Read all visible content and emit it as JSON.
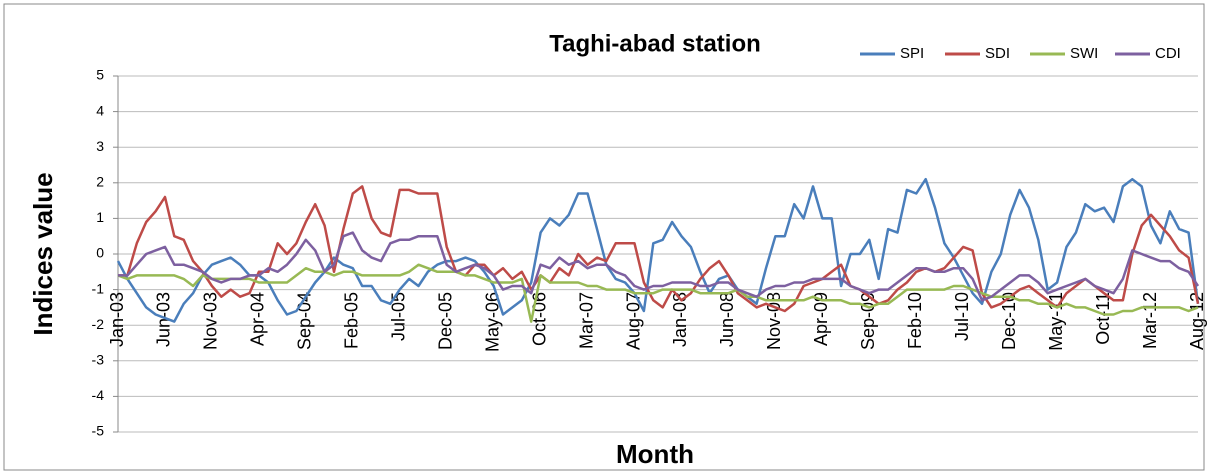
{
  "chart_data": {
    "type": "line",
    "title": "Taghi-abad station",
    "x_label": "Month",
    "y_label": "Indices value",
    "categories": [
      "Jan-03",
      null,
      null,
      null,
      null,
      "Jun-03",
      null,
      null,
      null,
      null,
      "Nov-03",
      null,
      null,
      null,
      null,
      "Apr-04",
      null,
      null,
      null,
      null,
      "Sep-04",
      null,
      null,
      null,
      null,
      "Feb-05",
      null,
      null,
      null,
      null,
      "Jul-05",
      null,
      null,
      null,
      null,
      "Dec-05",
      null,
      null,
      null,
      null,
      "May-06",
      null,
      null,
      null,
      null,
      "Oct-06",
      null,
      null,
      null,
      null,
      "Mar-07",
      null,
      null,
      null,
      null,
      "Aug-07",
      null,
      null,
      null,
      null,
      "Jan-08",
      null,
      null,
      null,
      null,
      "Jun-08",
      null,
      null,
      null,
      null,
      "Nov-08",
      null,
      null,
      null,
      null,
      "Apr-09",
      null,
      null,
      null,
      null,
      "Sep-09",
      null,
      null,
      null,
      null,
      "Feb-10",
      null,
      null,
      null,
      null,
      "Jul-10",
      null,
      null,
      null,
      null,
      "Dec-10",
      null,
      null,
      null,
      null,
      "May-11",
      null,
      null,
      null,
      null,
      "Oct-11",
      null,
      null,
      null,
      null,
      "Mar-12",
      null,
      null,
      null,
      null,
      "Aug-12"
    ],
    "series": [
      {
        "name": "SPI",
        "color": "#4a7ebb",
        "values": [
          -0.2,
          -0.7,
          -1.1,
          -1.5,
          -1.7,
          -1.8,
          -1.9,
          -1.4,
          -1.1,
          -0.6,
          -0.3,
          -0.2,
          -0.1,
          -0.3,
          -0.6,
          -0.6,
          -0.8,
          -1.3,
          -1.7,
          -1.6,
          -1.2,
          -0.8,
          -0.5,
          -0.1,
          -0.3,
          -0.4,
          -0.9,
          -0.9,
          -1.3,
          -1.4,
          -1.0,
          -0.7,
          -0.9,
          -0.5,
          -0.3,
          -0.2,
          -0.2,
          -0.1,
          -0.2,
          -0.5,
          -0.9,
          -1.7,
          -1.5,
          -1.3,
          -0.8,
          0.6,
          1.0,
          0.8,
          1.1,
          1.7,
          1.7,
          0.7,
          -0.3,
          -0.7,
          -0.8,
          -1.1,
          -1.6,
          0.3,
          0.4,
          0.9,
          0.5,
          0.2,
          -0.5,
          -1.1,
          -0.7,
          -0.6,
          -1.0,
          -1.2,
          -1.4,
          -0.4,
          0.5,
          0.5,
          1.4,
          1.0,
          1.9,
          1.0,
          1.0,
          -0.9,
          0.0,
          0.0,
          0.4,
          -0.7,
          0.7,
          0.6,
          1.8,
          1.7,
          2.1,
          1.3,
          0.3,
          -0.1,
          -0.6,
          -1.1,
          -1.4,
          -0.5,
          0.0,
          1.1,
          1.8,
          1.3,
          0.4,
          -1.0,
          -0.8,
          0.2,
          0.6,
          1.4,
          1.2,
          1.3,
          0.9,
          1.9,
          2.1,
          1.9,
          0.8,
          0.3,
          1.2,
          0.7,
          0.6,
          -1.4
        ]
      },
      {
        "name": "SDI",
        "color": "#be4b48",
        "values": [
          -0.6,
          -0.6,
          0.3,
          0.9,
          1.2,
          1.6,
          0.5,
          0.4,
          -0.2,
          -0.5,
          -0.9,
          -1.2,
          -1.0,
          -1.2,
          -1.1,
          -0.5,
          -0.5,
          0.3,
          0.0,
          0.3,
          0.9,
          1.4,
          0.8,
          -0.5,
          0.7,
          1.7,
          1.9,
          1.0,
          0.6,
          0.5,
          1.8,
          1.8,
          1.7,
          1.7,
          1.7,
          0.2,
          -0.5,
          -0.6,
          -0.3,
          -0.3,
          -0.6,
          -0.4,
          -0.7,
          -0.5,
          -1.0,
          -0.6,
          -0.8,
          -0.4,
          -0.6,
          0.0,
          -0.3,
          -0.1,
          -0.2,
          0.3,
          0.3,
          0.3,
          -0.8,
          -1.3,
          -1.5,
          -1.0,
          -1.3,
          -1.1,
          -0.7,
          -0.4,
          -0.2,
          -0.6,
          -1.1,
          -1.3,
          -1.5,
          -1.4,
          -1.5,
          -1.6,
          -1.4,
          -0.9,
          -0.8,
          -0.7,
          -0.5,
          -0.3,
          -0.9,
          -1.0,
          -1.2,
          -1.4,
          -1.3,
          -1.0,
          -0.8,
          -0.5,
          -0.4,
          -0.5,
          -0.4,
          -0.1,
          0.2,
          0.1,
          -1.1,
          -1.5,
          -1.4,
          -1.2,
          -1.0,
          -0.9,
          -1.1,
          -1.3,
          -1.5,
          -1.1,
          -0.9,
          -0.7,
          -0.9,
          -1.1,
          -1.3,
          -1.3,
          0.0,
          0.8,
          1.1,
          0.8,
          0.5,
          0.1,
          -0.1,
          -1.4
        ]
      },
      {
        "name": "SWI",
        "color": "#98b954",
        "values": [
          -0.6,
          -0.7,
          -0.6,
          -0.6,
          -0.6,
          -0.6,
          -0.6,
          -0.7,
          -0.9,
          -0.6,
          -0.7,
          -0.7,
          -0.7,
          -0.7,
          -0.7,
          -0.8,
          -0.8,
          -0.8,
          -0.8,
          -0.6,
          -0.4,
          -0.5,
          -0.5,
          -0.6,
          -0.5,
          -0.5,
          -0.6,
          -0.6,
          -0.6,
          -0.6,
          -0.6,
          -0.5,
          -0.3,
          -0.4,
          -0.5,
          -0.5,
          -0.5,
          -0.6,
          -0.6,
          -0.7,
          -0.8,
          -0.8,
          -0.8,
          -0.7,
          -1.9,
          -0.6,
          -0.8,
          -0.8,
          -0.8,
          -0.8,
          -0.9,
          -0.9,
          -1.0,
          -1.0,
          -1.0,
          -1.1,
          -1.1,
          -1.1,
          -1.0,
          -1.0,
          -1.0,
          -1.0,
          -1.1,
          -1.1,
          -1.1,
          -1.1,
          -1.0,
          -1.2,
          -1.2,
          -1.3,
          -1.3,
          -1.3,
          -1.3,
          -1.3,
          -1.2,
          -1.3,
          -1.3,
          -1.3,
          -1.4,
          -1.4,
          -1.5,
          -1.4,
          -1.4,
          -1.2,
          -1.0,
          -1.0,
          -1.0,
          -1.0,
          -1.0,
          -0.9,
          -0.9,
          -1.0,
          -1.1,
          -1.2,
          -1.2,
          -1.2,
          -1.3,
          -1.3,
          -1.4,
          -1.4,
          -1.5,
          -1.4,
          -1.5,
          -1.5,
          -1.6,
          -1.7,
          -1.7,
          -1.6,
          -1.6,
          -1.5,
          -1.5,
          -1.5,
          -1.5,
          -1.5,
          -1.6,
          -1.5
        ]
      },
      {
        "name": "CDI",
        "color": "#7d60a0",
        "values": [
          -0.6,
          -0.6,
          -0.3,
          0.0,
          0.1,
          0.2,
          -0.3,
          -0.3,
          -0.4,
          -0.5,
          -0.7,
          -0.8,
          -0.7,
          -0.7,
          -0.6,
          -0.6,
          -0.4,
          -0.5,
          -0.3,
          0.0,
          0.4,
          0.1,
          -0.5,
          -0.3,
          0.5,
          0.6,
          0.1,
          -0.1,
          -0.2,
          0.3,
          0.4,
          0.4,
          0.5,
          0.5,
          0.5,
          -0.3,
          -0.5,
          -0.4,
          -0.3,
          -0.4,
          -0.6,
          -1.0,
          -0.9,
          -0.9,
          -1.1,
          -0.3,
          -0.4,
          -0.1,
          -0.3,
          -0.2,
          -0.4,
          -0.3,
          -0.3,
          -0.5,
          -0.6,
          -0.9,
          -1.0,
          -0.9,
          -0.9,
          -0.8,
          -0.8,
          -0.8,
          -0.9,
          -0.9,
          -0.8,
          -0.8,
          -1.0,
          -1.1,
          -1.2,
          -1.0,
          -0.9,
          -0.9,
          -0.8,
          -0.8,
          -0.7,
          -0.7,
          -0.7,
          -0.7,
          -0.9,
          -1.0,
          -1.1,
          -1.0,
          -1.0,
          -0.8,
          -0.6,
          -0.4,
          -0.4,
          -0.5,
          -0.5,
          -0.4,
          -0.4,
          -0.7,
          -1.3,
          -1.2,
          -1.0,
          -0.8,
          -0.6,
          -0.6,
          -0.8,
          -1.1,
          -1.0,
          -0.9,
          -0.8,
          -0.7,
          -0.9,
          -1.0,
          -1.1,
          -0.7,
          0.1,
          0.0,
          -0.1,
          -0.2,
          -0.2,
          -0.4,
          -0.5,
          -0.9
        ]
      }
    ],
    "ylim": [
      -5,
      5
    ],
    "yticks": [
      -5,
      -4,
      -3,
      -2,
      -1,
      0,
      1,
      2,
      3,
      4,
      5
    ],
    "grid": true,
    "legend": "top-right"
  }
}
